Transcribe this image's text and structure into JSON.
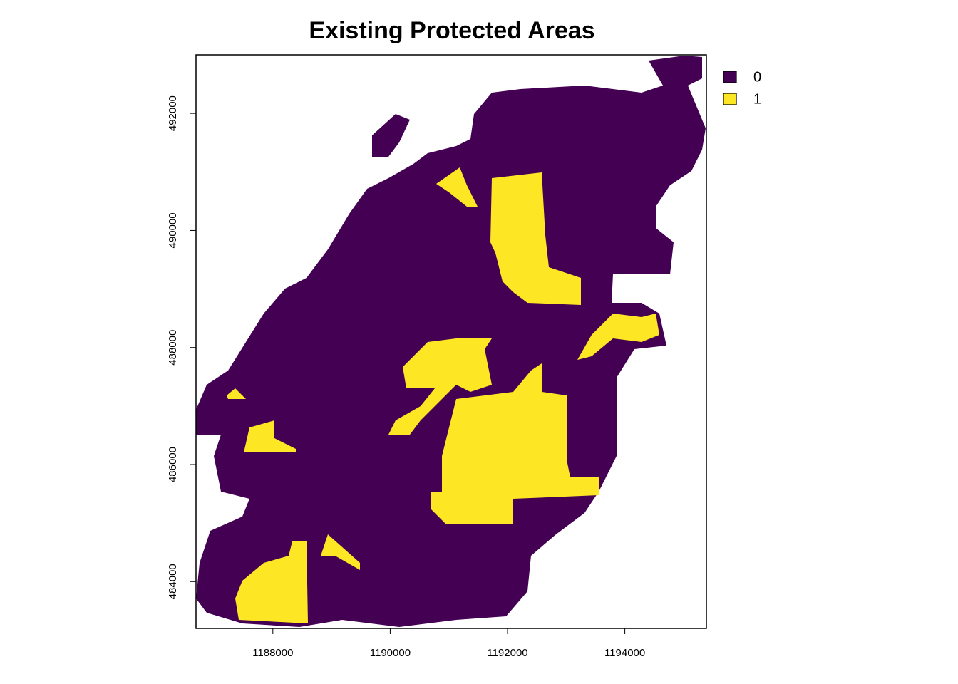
{
  "chart_data": {
    "type": "raster",
    "title": "Existing Protected Areas",
    "xlim": [
      1186690,
      1195390
    ],
    "ylim": [
      483200,
      493000
    ],
    "xticks": [
      1188000,
      1190000,
      1192000,
      1194000
    ],
    "yticks": [
      484000,
      486000,
      488000,
      490000,
      492000
    ],
    "legend": [
      {
        "name": "0",
        "color": "#440154"
      },
      {
        "name": "1",
        "color": "#FDE725"
      }
    ],
    "legend_position": "top-right"
  }
}
